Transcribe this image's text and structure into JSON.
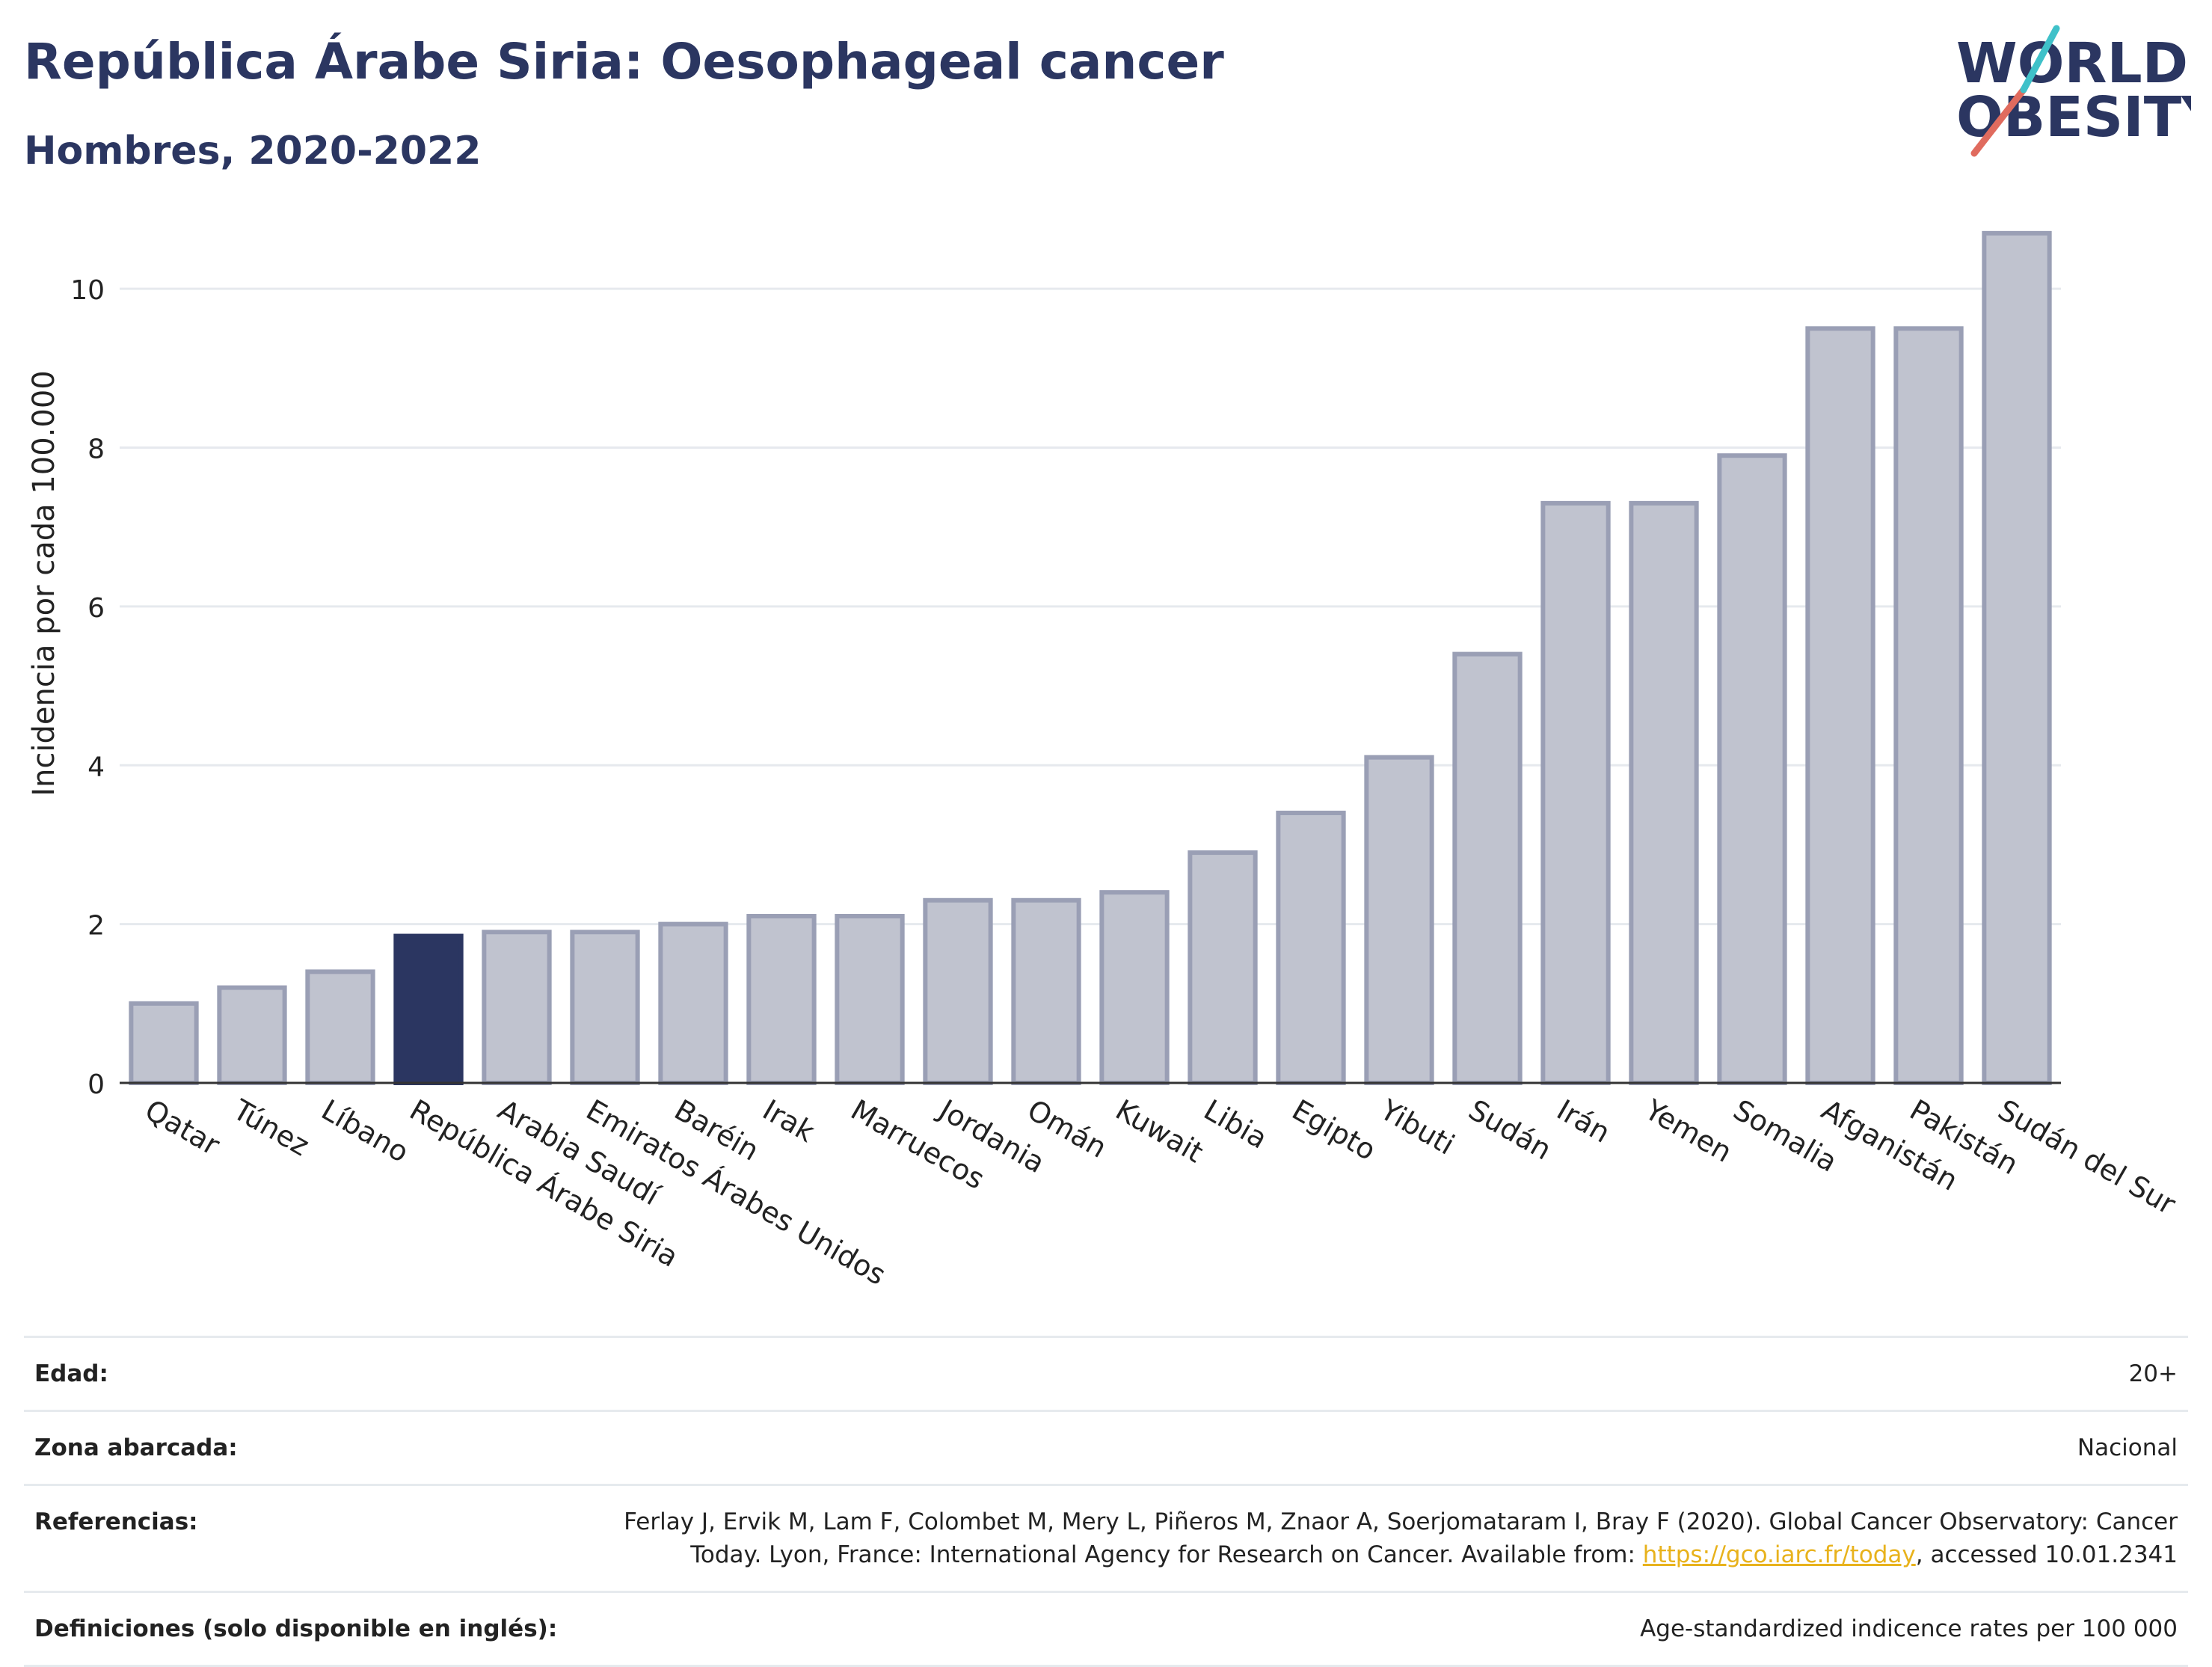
{
  "header": {
    "title": "República Árabe Siria: Oesophageal cancer",
    "subtitle": "Hombres, 2020-2022"
  },
  "logo": {
    "line1": "WORLD",
    "line2": "OBESITY"
  },
  "colors": {
    "highlight": "#2b3661",
    "bar_fill": "#c0c3cf",
    "bar_stroke": "#9a9fb5",
    "title": "#2b3661",
    "link": "#e8b21c"
  },
  "chart_data": {
    "type": "bar",
    "title": "República Árabe Siria: Oesophageal cancer",
    "subtitle": "Hombres, 2020-2022",
    "xlabel": "",
    "ylabel": "Incidencia por cada 100.000",
    "ylim": [
      0,
      11
    ],
    "yticks": [
      0,
      2,
      4,
      6,
      8,
      10
    ],
    "grid": true,
    "highlight": "República Árabe Siria",
    "categories": [
      "Qatar",
      "Túnez",
      "Líbano",
      "República Árabe Siria",
      "Arabia Saudí",
      "Emiratos Árabes Unidos",
      "Baréin",
      "Irak",
      "Marruecos",
      "Jordania",
      "Omán",
      "Kuwait",
      "Libia",
      "Egipto",
      "Yibuti",
      "Sudán",
      "Irán",
      "Yemen",
      "Somalia",
      "Afganistán",
      "Pakistán",
      "Sudán del Sur"
    ],
    "values": [
      1.0,
      1.2,
      1.4,
      1.85,
      1.9,
      1.9,
      2.0,
      2.1,
      2.1,
      2.3,
      2.3,
      2.4,
      2.9,
      3.4,
      4.1,
      5.4,
      7.3,
      7.3,
      7.9,
      9.5,
      9.5,
      10.7
    ]
  },
  "info": {
    "age_label": "Edad:",
    "age_value": "20+",
    "area_label": "Zona abarcada:",
    "area_value": "Nacional",
    "ref_label": "Referencias:",
    "ref_text_1": "Ferlay J, Ervik M, Lam F, Colombet M, Mery L, Piñeros M, Znaor A, Soerjomataram I, Bray F (2020). Global Cancer Observatory: Cancer Today. Lyon, France: International Agency for Research on Cancer. Available from: ",
    "ref_link": "https://gco.iarc.fr/today",
    "ref_text_2": ", accessed 10.01.2341",
    "def_label": "Definiciones (solo disponible en inglés):",
    "def_value": "Age-standardized indicence rates per 100 000"
  }
}
